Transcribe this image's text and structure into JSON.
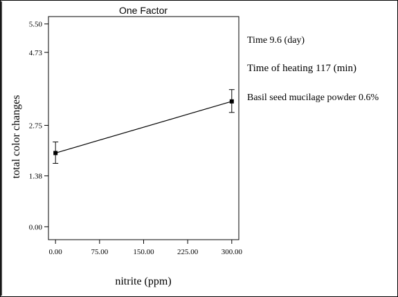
{
  "chart_data": {
    "type": "line",
    "title": "One Factor",
    "xlabel": "nitrite (ppm)",
    "ylabel": "total color changes",
    "xlim": [
      -12,
      312
    ],
    "ylim": [
      -0.35,
      5.7
    ],
    "x_ticks": [
      0,
      75,
      150,
      225,
      300
    ],
    "x_tick_labels": [
      "0.00",
      "75.00",
      "150.00",
      "225.00",
      "300.00"
    ],
    "y_ticks": [
      0,
      1.38,
      2.75,
      4.73,
      5.5
    ],
    "y_tick_labels": [
      "0.00",
      "1.38",
      "2.75",
      "4.73",
      "5.50"
    ],
    "series": [
      {
        "x": [
          0,
          300
        ],
        "y": [
          2.0,
          3.4
        ],
        "error_low": [
          1.72,
          3.1
        ],
        "error_high": [
          2.3,
          3.72
        ]
      }
    ],
    "grid": false,
    "annotations": [
      "Time 9.6 (day)",
      "Time of heating 117 (min)",
      "Basil seed mucilage powder 0.6%"
    ]
  }
}
